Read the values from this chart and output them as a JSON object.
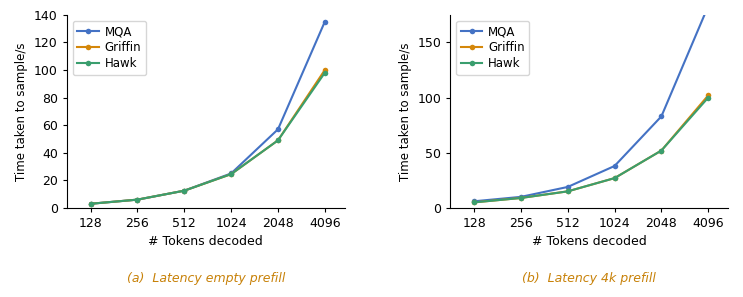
{
  "x_tokens": [
    128,
    256,
    512,
    1024,
    2048,
    4096
  ],
  "plot_a": {
    "caption": "(a)  Latency empty prefill",
    "ylabel": "Time taken to sample/s",
    "xlabel": "# Tokens decoded",
    "ylim": [
      0,
      140
    ],
    "yticks": [
      0,
      20,
      40,
      60,
      80,
      100,
      120,
      140
    ],
    "MQA": [
      3.0,
      6.0,
      12.5,
      25.0,
      57.0,
      135.0
    ],
    "Griffin": [
      3.0,
      6.0,
      12.5,
      24.5,
      49.0,
      100.0
    ],
    "Hawk": [
      3.0,
      6.0,
      12.5,
      24.5,
      49.0,
      98.0
    ]
  },
  "plot_b": {
    "caption": "(b)  Latency 4k prefill",
    "ylabel": "Time taken to sample/s",
    "xlabel": "# Tokens decoded",
    "ylim": [
      0,
      175
    ],
    "yticks": [
      0,
      50,
      100,
      150
    ],
    "MQA": [
      6.0,
      10.0,
      19.0,
      38.0,
      83.0,
      183.0
    ],
    "Griffin": [
      5.0,
      9.0,
      15.0,
      27.0,
      52.0,
      102.0
    ],
    "Hawk": [
      5.0,
      9.0,
      15.0,
      27.0,
      52.0,
      100.0
    ]
  },
  "colors": {
    "MQA": "#4472c4",
    "Griffin": "#d4870a",
    "Hawk": "#3a9e6e"
  },
  "marker": "o",
  "markersize": 4,
  "linewidth": 1.5,
  "caption_color": "#c8820a",
  "caption_fontsize": 9
}
